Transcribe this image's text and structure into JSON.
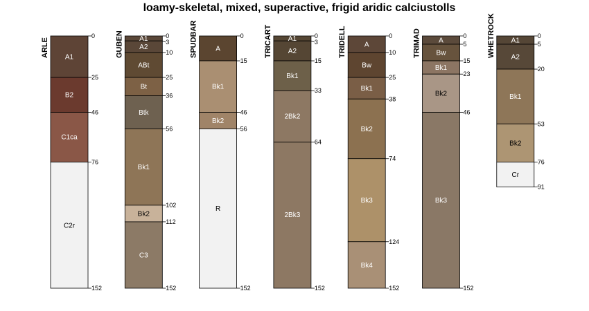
{
  "chart_data": {
    "type": "soil-profile-sketch",
    "title": "loamy-skeletal, mixed, superactive, frigid aridic calciustolls",
    "depth_units": "cm",
    "depth_range": [
      0,
      152
    ],
    "profiles": [
      {
        "name": "ARLE",
        "horizons": [
          {
            "name": "A1",
            "top": 0,
            "bottom": 25,
            "color": "#5E4436"
          },
          {
            "name": "B2",
            "top": 25,
            "bottom": 46,
            "color": "#6B3A2E"
          },
          {
            "name": "C1ca",
            "top": 46,
            "bottom": 76,
            "color": "#8A5747"
          },
          {
            "name": "C2r",
            "top": 76,
            "bottom": 152,
            "color": "#F2F2F2"
          }
        ],
        "depth_ticks": [
          0,
          25,
          46,
          76,
          152
        ]
      },
      {
        "name": "GUBEN",
        "horizons": [
          {
            "name": "A1",
            "top": 0,
            "bottom": 3,
            "color": "#5A4738"
          },
          {
            "name": "A2",
            "top": 3,
            "bottom": 10,
            "color": "#5A4738"
          },
          {
            "name": "ABt",
            "top": 10,
            "bottom": 25,
            "color": "#5F4A33"
          },
          {
            "name": "Bt",
            "top": 25,
            "bottom": 36,
            "color": "#7D6145"
          },
          {
            "name": "Btk",
            "top": 36,
            "bottom": 56,
            "color": "#6E6150"
          },
          {
            "name": "Bk1",
            "top": 56,
            "bottom": 102,
            "color": "#8E7557"
          },
          {
            "name": "Bk2",
            "top": 102,
            "bottom": 112,
            "color": "#C8B29A"
          },
          {
            "name": "C3",
            "top": 112,
            "bottom": 152,
            "color": "#8C7A66"
          }
        ],
        "depth_ticks": [
          0,
          3,
          10,
          25,
          36,
          56,
          102,
          112,
          152
        ]
      },
      {
        "name": "SPUDBAR",
        "horizons": [
          {
            "name": "A",
            "top": 0,
            "bottom": 15,
            "color": "#5B4530"
          },
          {
            "name": "Bk1",
            "top": 15,
            "bottom": 46,
            "color": "#AA8F72"
          },
          {
            "name": "Bk2",
            "top": 46,
            "bottom": 56,
            "color": "#A08468"
          },
          {
            "name": "R",
            "top": 56,
            "bottom": 152,
            "color": "#F2F2F2"
          }
        ],
        "depth_ticks": [
          0,
          15,
          46,
          56,
          152
        ]
      },
      {
        "name": "TRICART",
        "horizons": [
          {
            "name": "A1",
            "top": 0,
            "bottom": 3,
            "color": "#554634"
          },
          {
            "name": "A2",
            "top": 3,
            "bottom": 15,
            "color": "#554634"
          },
          {
            "name": "Bk1",
            "top": 15,
            "bottom": 33,
            "color": "#6D6049"
          },
          {
            "name": "2Bk2",
            "top": 33,
            "bottom": 64,
            "color": "#8D7863"
          },
          {
            "name": "2Bk3",
            "top": 64,
            "bottom": 152,
            "color": "#8D7863"
          }
        ],
        "depth_ticks": [
          0,
          3,
          15,
          33,
          64,
          152
        ]
      },
      {
        "name": "TRIDELL",
        "horizons": [
          {
            "name": "A",
            "top": 0,
            "bottom": 10,
            "color": "#5D4738"
          },
          {
            "name": "Bw",
            "top": 10,
            "bottom": 25,
            "color": "#5E4530"
          },
          {
            "name": "Bk1",
            "top": 25,
            "bottom": 38,
            "color": "#7A5E46"
          },
          {
            "name": "Bk2",
            "top": 38,
            "bottom": 74,
            "color": "#8C7150"
          },
          {
            "name": "Bk3",
            "top": 74,
            "bottom": 124,
            "color": "#AD9169"
          },
          {
            "name": "Bk4",
            "top": 124,
            "bottom": 152,
            "color": "#A99076"
          }
        ],
        "depth_ticks": [
          0,
          10,
          25,
          38,
          74,
          124,
          152
        ]
      },
      {
        "name": "TRIMAD",
        "horizons": [
          {
            "name": "A",
            "top": 0,
            "bottom": 5,
            "color": "#5B4A3B"
          },
          {
            "name": "Bw",
            "top": 5,
            "bottom": 15,
            "color": "#67533D"
          },
          {
            "name": "Bk1",
            "top": 15,
            "bottom": 23,
            "color": "#8C7563"
          },
          {
            "name": "Bk2",
            "top": 23,
            "bottom": 46,
            "color": "#A99686"
          },
          {
            "name": "Bk3",
            "top": 46,
            "bottom": 152,
            "color": "#8A7866"
          }
        ],
        "depth_ticks": [
          0,
          5,
          15,
          23,
          46,
          152
        ]
      },
      {
        "name": "WHETROCK",
        "horizons": [
          {
            "name": "A1",
            "top": 0,
            "bottom": 5,
            "color": "#554636"
          },
          {
            "name": "A2",
            "top": 5,
            "bottom": 20,
            "color": "#574838"
          },
          {
            "name": "Bk1",
            "top": 20,
            "bottom": 53,
            "color": "#8E7658"
          },
          {
            "name": "Bk2",
            "top": 53,
            "bottom": 76,
            "color": "#AD9573"
          },
          {
            "name": "Cr",
            "top": 76,
            "bottom": 91,
            "color": "#F2F2F2"
          }
        ],
        "depth_ticks": [
          0,
          5,
          20,
          53,
          76,
          91
        ]
      }
    ]
  }
}
